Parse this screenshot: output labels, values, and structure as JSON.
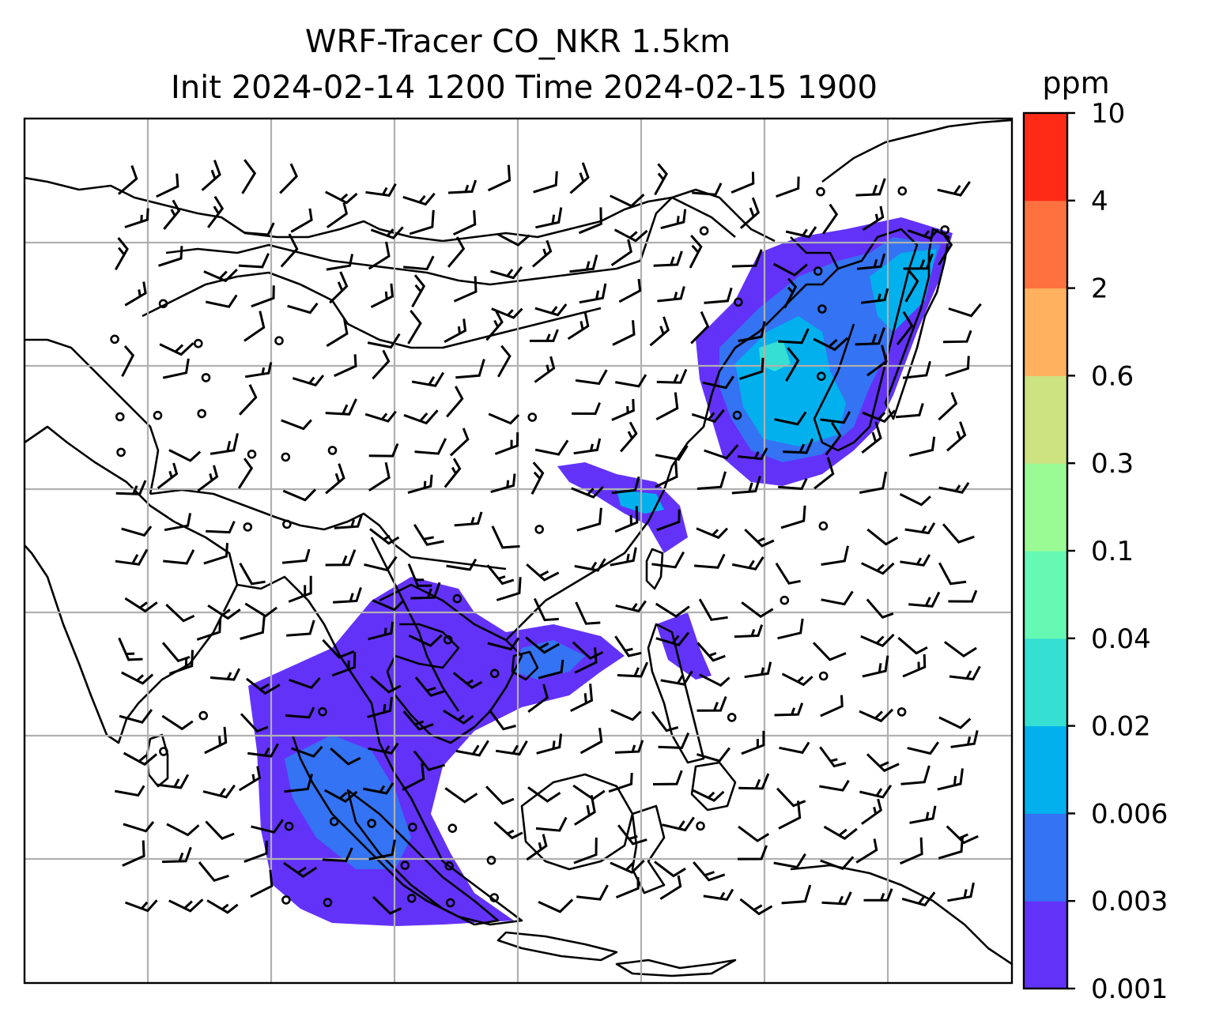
{
  "title": {
    "line1": "WRF-Tracer CO_NKR 1.5km",
    "line2": "Init 2024-02-14 1200 Time 2024-02-15 1900"
  },
  "colorbar": {
    "unit": "ppm",
    "ticks": [
      "0.001",
      "0.003",
      "0.006",
      "0.02",
      "0.04",
      "0.1",
      "0.3",
      "0.6",
      "2",
      "4",
      "10"
    ],
    "colors": [
      "#6332f9",
      "#3473f3",
      "#02b0ed",
      "#35dfd2",
      "#66f9b3",
      "#9afa94",
      "#cde280",
      "#ffb15f",
      "#ff7240",
      "#ff2b16"
    ]
  },
  "map": {
    "gridlines": true,
    "features": [
      "coastlines",
      "country borders",
      "wind barbs",
      "calm circles",
      "tracer concentration shading"
    ]
  }
}
